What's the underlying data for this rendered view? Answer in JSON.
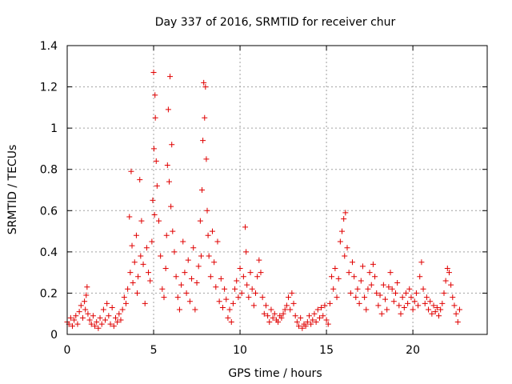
{
  "chart_data": {
    "type": "scatter",
    "title": "Day 337 of 2016, SRMTID for receiver chur",
    "xlabel": "GPS time / hours",
    "ylabel": "SRMTID / TECUs",
    "xlim": [
      0,
      24.3
    ],
    "ylim": [
      0,
      1.4
    ],
    "x_ticks": [
      0,
      5,
      10,
      15,
      20
    ],
    "x_tick_labels": [
      "0",
      "5",
      "10",
      "15",
      "20"
    ],
    "y_ticks": [
      0,
      0.2,
      0.4,
      0.6,
      0.8,
      1.0,
      1.2,
      1.4
    ],
    "y_tick_labels": [
      "0",
      "0.2",
      "0.4",
      "0.6",
      "0.8",
      "1",
      "1.2",
      "1.4"
    ],
    "grid": true,
    "marker": "+",
    "series": [
      {
        "name": "SRMTID",
        "color": "#e00000",
        "points": [
          [
            0.0,
            0.06
          ],
          [
            0.1,
            0.05
          ],
          [
            0.2,
            0.08
          ],
          [
            0.3,
            0.04
          ],
          [
            0.4,
            0.07
          ],
          [
            0.5,
            0.09
          ],
          [
            0.6,
            0.05
          ],
          [
            0.7,
            0.11
          ],
          [
            0.8,
            0.14
          ],
          [
            0.9,
            0.08
          ],
          [
            1.0,
            0.16
          ],
          [
            1.05,
            0.12
          ],
          [
            1.1,
            0.19
          ],
          [
            1.15,
            0.23
          ],
          [
            1.2,
            0.1
          ],
          [
            1.3,
            0.07
          ],
          [
            1.4,
            0.05
          ],
          [
            1.5,
            0.09
          ],
          [
            1.6,
            0.04
          ],
          [
            1.7,
            0.06
          ],
          [
            1.8,
            0.03
          ],
          [
            1.9,
            0.08
          ],
          [
            2.0,
            0.05
          ],
          [
            2.1,
            0.12
          ],
          [
            2.2,
            0.07
          ],
          [
            2.3,
            0.15
          ],
          [
            2.4,
            0.09
          ],
          [
            2.5,
            0.05
          ],
          [
            2.6,
            0.13
          ],
          [
            2.7,
            0.04
          ],
          [
            2.8,
            0.08
          ],
          [
            2.9,
            0.06
          ],
          [
            3.0,
            0.1
          ],
          [
            3.1,
            0.07
          ],
          [
            3.2,
            0.12
          ],
          [
            3.3,
            0.18
          ],
          [
            3.4,
            0.15
          ],
          [
            3.5,
            0.22
          ],
          [
            3.6,
            0.57
          ],
          [
            3.65,
            0.3
          ],
          [
            3.7,
            0.79
          ],
          [
            3.75,
            0.43
          ],
          [
            3.8,
            0.25
          ],
          [
            3.9,
            0.35
          ],
          [
            4.0,
            0.48
          ],
          [
            4.05,
            0.2
          ],
          [
            4.1,
            0.28
          ],
          [
            4.2,
            0.75
          ],
          [
            4.25,
            0.38
          ],
          [
            4.3,
            0.55
          ],
          [
            4.4,
            0.34
          ],
          [
            4.5,
            0.15
          ],
          [
            4.6,
            0.42
          ],
          [
            4.7,
            0.3
          ],
          [
            4.8,
            0.26
          ],
          [
            4.9,
            0.45
          ],
          [
            4.95,
            0.65
          ],
          [
            5.0,
            1.27
          ],
          [
            5.02,
            0.9
          ],
          [
            5.05,
            0.58
          ],
          [
            5.08,
            1.16
          ],
          [
            5.1,
            1.05
          ],
          [
            5.15,
            0.84
          ],
          [
            5.2,
            0.72
          ],
          [
            5.3,
            0.55
          ],
          [
            5.4,
            0.38
          ],
          [
            5.5,
            0.22
          ],
          [
            5.6,
            0.18
          ],
          [
            5.7,
            0.32
          ],
          [
            5.75,
            0.48
          ],
          [
            5.8,
            0.82
          ],
          [
            5.85,
            1.09
          ],
          [
            5.9,
            0.74
          ],
          [
            5.95,
            1.25
          ],
          [
            6.0,
            0.62
          ],
          [
            6.05,
            0.92
          ],
          [
            6.1,
            0.5
          ],
          [
            6.2,
            0.4
          ],
          [
            6.3,
            0.28
          ],
          [
            6.4,
            0.18
          ],
          [
            6.5,
            0.12
          ],
          [
            6.6,
            0.24
          ],
          [
            6.7,
            0.45
          ],
          [
            6.8,
            0.3
          ],
          [
            6.9,
            0.2
          ],
          [
            7.0,
            0.36
          ],
          [
            7.1,
            0.16
          ],
          [
            7.2,
            0.27
          ],
          [
            7.3,
            0.42
          ],
          [
            7.4,
            0.12
          ],
          [
            7.5,
            0.25
          ],
          [
            7.6,
            0.33
          ],
          [
            7.7,
            0.55
          ],
          [
            7.75,
            0.38
          ],
          [
            7.8,
            0.7
          ],
          [
            7.85,
            0.94
          ],
          [
            7.9,
            1.22
          ],
          [
            7.95,
            1.05
          ],
          [
            8.0,
            1.2
          ],
          [
            8.05,
            0.85
          ],
          [
            8.1,
            0.6
          ],
          [
            8.15,
            0.48
          ],
          [
            8.2,
            0.38
          ],
          [
            8.3,
            0.28
          ],
          [
            8.4,
            0.5
          ],
          [
            8.5,
            0.35
          ],
          [
            8.6,
            0.23
          ],
          [
            8.7,
            0.45
          ],
          [
            8.8,
            0.16
          ],
          [
            8.9,
            0.27
          ],
          [
            9.0,
            0.13
          ],
          [
            9.1,
            0.22
          ],
          [
            9.2,
            0.17
          ],
          [
            9.3,
            0.08
          ],
          [
            9.4,
            0.12
          ],
          [
            9.5,
            0.06
          ],
          [
            9.6,
            0.15
          ],
          [
            9.7,
            0.22
          ],
          [
            9.8,
            0.26
          ],
          [
            9.9,
            0.18
          ],
          [
            10.0,
            0.32
          ],
          [
            10.1,
            0.2
          ],
          [
            10.2,
            0.28
          ],
          [
            10.3,
            0.52
          ],
          [
            10.35,
            0.4
          ],
          [
            10.4,
            0.24
          ],
          [
            10.5,
            0.18
          ],
          [
            10.6,
            0.3
          ],
          [
            10.7,
            0.22
          ],
          [
            10.8,
            0.14
          ],
          [
            10.9,
            0.2
          ],
          [
            11.0,
            0.28
          ],
          [
            11.1,
            0.36
          ],
          [
            11.2,
            0.3
          ],
          [
            11.3,
            0.18
          ],
          [
            11.4,
            0.1
          ],
          [
            11.5,
            0.14
          ],
          [
            11.6,
            0.09
          ],
          [
            11.7,
            0.06
          ],
          [
            11.8,
            0.12
          ],
          [
            11.9,
            0.08
          ],
          [
            12.0,
            0.1
          ],
          [
            12.1,
            0.07
          ],
          [
            12.2,
            0.06
          ],
          [
            12.3,
            0.09
          ],
          [
            12.4,
            0.08
          ],
          [
            12.5,
            0.1
          ],
          [
            12.6,
            0.12
          ],
          [
            12.7,
            0.14
          ],
          [
            12.8,
            0.18
          ],
          [
            12.9,
            0.12
          ],
          [
            13.0,
            0.2
          ],
          [
            13.1,
            0.15
          ],
          [
            13.2,
            0.09
          ],
          [
            13.3,
            0.06
          ],
          [
            13.4,
            0.04
          ],
          [
            13.5,
            0.08
          ],
          [
            13.6,
            0.03
          ],
          [
            13.7,
            0.05
          ],
          [
            13.8,
            0.04
          ],
          [
            13.9,
            0.06
          ],
          [
            14.0,
            0.09
          ],
          [
            14.1,
            0.05
          ],
          [
            14.2,
            0.07
          ],
          [
            14.3,
            0.1
          ],
          [
            14.4,
            0.06
          ],
          [
            14.5,
            0.12
          ],
          [
            14.6,
            0.08
          ],
          [
            14.7,
            0.13
          ],
          [
            14.8,
            0.09
          ],
          [
            14.9,
            0.14
          ],
          [
            15.0,
            0.07
          ],
          [
            15.1,
            0.05
          ],
          [
            15.2,
            0.15
          ],
          [
            15.3,
            0.28
          ],
          [
            15.4,
            0.22
          ],
          [
            15.5,
            0.32
          ],
          [
            15.6,
            0.18
          ],
          [
            15.7,
            0.27
          ],
          [
            15.8,
            0.45
          ],
          [
            15.9,
            0.5
          ],
          [
            16.0,
            0.56
          ],
          [
            16.05,
            0.38
          ],
          [
            16.1,
            0.59
          ],
          [
            16.2,
            0.42
          ],
          [
            16.3,
            0.3
          ],
          [
            16.4,
            0.2
          ],
          [
            16.5,
            0.35
          ],
          [
            16.6,
            0.28
          ],
          [
            16.7,
            0.18
          ],
          [
            16.8,
            0.22
          ],
          [
            16.9,
            0.15
          ],
          [
            17.0,
            0.26
          ],
          [
            17.1,
            0.33
          ],
          [
            17.2,
            0.18
          ],
          [
            17.3,
            0.12
          ],
          [
            17.4,
            0.22
          ],
          [
            17.5,
            0.3
          ],
          [
            17.6,
            0.24
          ],
          [
            17.7,
            0.34
          ],
          [
            17.8,
            0.28
          ],
          [
            17.9,
            0.2
          ],
          [
            18.0,
            0.14
          ],
          [
            18.1,
            0.19
          ],
          [
            18.2,
            0.1
          ],
          [
            18.3,
            0.24
          ],
          [
            18.4,
            0.17
          ],
          [
            18.5,
            0.12
          ],
          [
            18.6,
            0.23
          ],
          [
            18.7,
            0.3
          ],
          [
            18.8,
            0.22
          ],
          [
            18.9,
            0.16
          ],
          [
            19.0,
            0.2
          ],
          [
            19.1,
            0.25
          ],
          [
            19.2,
            0.14
          ],
          [
            19.3,
            0.1
          ],
          [
            19.4,
            0.18
          ],
          [
            19.5,
            0.13
          ],
          [
            19.6,
            0.2
          ],
          [
            19.7,
            0.15
          ],
          [
            19.8,
            0.22
          ],
          [
            19.9,
            0.18
          ],
          [
            20.0,
            0.12
          ],
          [
            20.1,
            0.16
          ],
          [
            20.2,
            0.2
          ],
          [
            20.3,
            0.14
          ],
          [
            20.4,
            0.28
          ],
          [
            20.5,
            0.35
          ],
          [
            20.6,
            0.22
          ],
          [
            20.7,
            0.15
          ],
          [
            20.8,
            0.18
          ],
          [
            20.9,
            0.12
          ],
          [
            21.0,
            0.16
          ],
          [
            21.1,
            0.1
          ],
          [
            21.2,
            0.14
          ],
          [
            21.3,
            0.11
          ],
          [
            21.4,
            0.13
          ],
          [
            21.5,
            0.09
          ],
          [
            21.6,
            0.12
          ],
          [
            21.7,
            0.15
          ],
          [
            21.8,
            0.2
          ],
          [
            21.9,
            0.26
          ],
          [
            22.0,
            0.32
          ],
          [
            22.1,
            0.3
          ],
          [
            22.2,
            0.24
          ],
          [
            22.3,
            0.18
          ],
          [
            22.4,
            0.14
          ],
          [
            22.5,
            0.1
          ],
          [
            22.6,
            0.06
          ],
          [
            22.7,
            0.12
          ]
        ]
      }
    ]
  }
}
